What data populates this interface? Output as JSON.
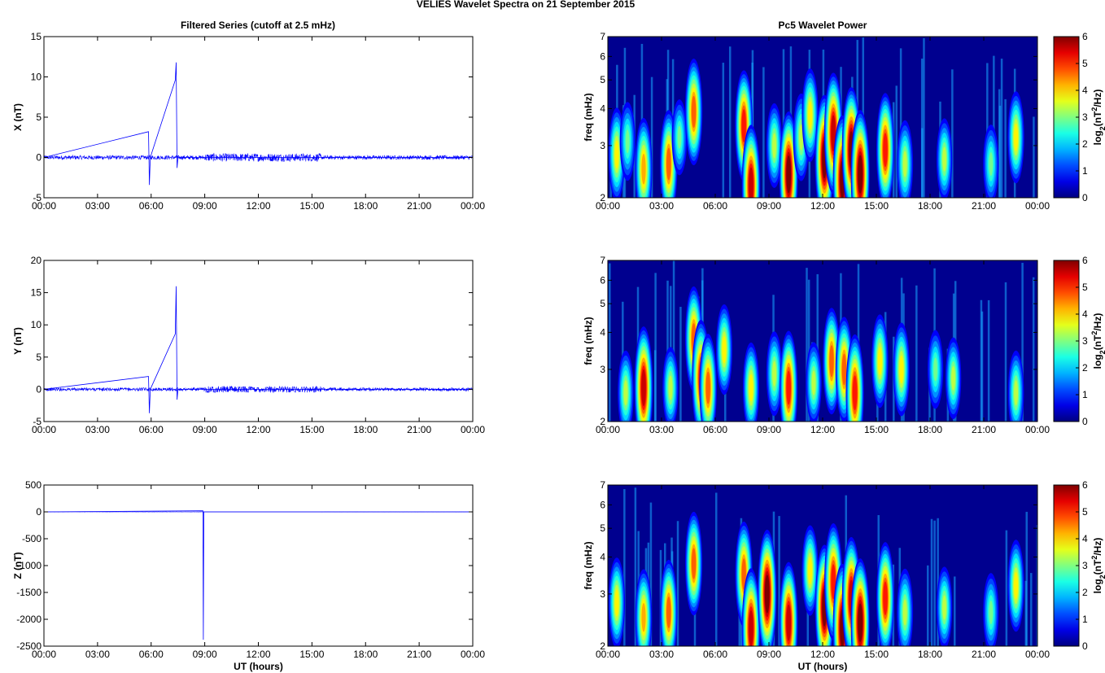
{
  "figure": {
    "title": "VELIES Wavelet Spectra on 21 September 2015",
    "left_column_title": "Filtered Series (cutoff at 2.5 mHz)",
    "right_column_title": "Pc5 Wavelet Power"
  },
  "colors": {
    "trace": "#0000ff",
    "spectrum_background": "#00008f"
  },
  "chart_data": [
    {
      "type": "line",
      "title": "Filtered Series (cutoff at 2.5 mHz)",
      "ylabel": "X (nT)",
      "xlabel": "",
      "xlim": [
        0,
        24
      ],
      "ylim": [
        -5,
        15
      ],
      "yticks": [
        "15",
        "10",
        "5",
        "0",
        "-5"
      ],
      "xticks": [
        "00:00",
        "03:00",
        "06:00",
        "09:00",
        "12:00",
        "15:00",
        "18:00",
        "21:00",
        "00:00"
      ],
      "series": [
        {
          "x": [
            0,
            5.85,
            5.9,
            5.95,
            7.35,
            7.4,
            7.45,
            7.5,
            24
          ],
          "y": [
            0,
            3.2,
            -3.4,
            0,
            9.6,
            11.8,
            -1.3,
            0,
            0
          ]
        }
      ]
    },
    {
      "type": "line",
      "ylabel": "Y (nT)",
      "xlabel": "",
      "xlim": [
        0,
        24
      ],
      "ylim": [
        -5,
        20
      ],
      "yticks": [
        "20",
        "15",
        "10",
        "5",
        "0",
        "-5"
      ],
      "xticks": [
        "00:00",
        "03:00",
        "06:00",
        "09:00",
        "12:00",
        "15:00",
        "18:00",
        "21:00",
        "00:00"
      ],
      "series": [
        {
          "x": [
            0,
            5.85,
            5.9,
            5.95,
            7.35,
            7.4,
            7.45,
            7.5,
            24
          ],
          "y": [
            0,
            2.0,
            -3.7,
            0,
            8.6,
            16.0,
            -1.6,
            0,
            0
          ]
        }
      ]
    },
    {
      "type": "line",
      "ylabel": "Z (nT)",
      "xlabel": "UT (hours)",
      "xlim": [
        0,
        24
      ],
      "ylim": [
        -2500,
        500
      ],
      "yticks": [
        "500",
        "0",
        "-500",
        "-1000",
        "-1500",
        "-2000",
        "-2500"
      ],
      "xticks": [
        "00:00",
        "03:00",
        "06:00",
        "09:00",
        "12:00",
        "15:00",
        "18:00",
        "21:00",
        "00:00"
      ],
      "series": [
        {
          "x": [
            0,
            8.9,
            8.92,
            8.95,
            24
          ],
          "y": [
            0,
            20,
            -2380,
            0,
            0
          ]
        }
      ]
    },
    {
      "type": "heatmap",
      "title": "Pc5 Wavelet Power",
      "ylabel": "freq (mHz)",
      "xlabel": "",
      "xlim": [
        0,
        24
      ],
      "ylim": [
        2,
        7
      ],
      "yticks": [
        "7",
        "6",
        "5",
        "4",
        "3",
        "2"
      ],
      "xticks": [
        "00:00",
        "03:00",
        "06:00",
        "09:00",
        "12:00",
        "15:00",
        "18:00",
        "21:00",
        "00:00"
      ],
      "colorbar": {
        "label_base": "log",
        "label_sub": "2",
        "label_mid": "(nT",
        "label_sup": "2",
        "label_end": "/Hz)",
        "ticks": [
          "6",
          "5",
          "4",
          "3",
          "2",
          "1",
          "0"
        ],
        "range": [
          0,
          6
        ]
      },
      "blobs": [
        [
          0.5,
          2.8,
          3.6
        ],
        [
          1.1,
          3.1,
          2.6
        ],
        [
          2.0,
          2.5,
          4.2
        ],
        [
          3.4,
          2.6,
          4.6
        ],
        [
          4.0,
          3.2,
          2.4
        ],
        [
          4.8,
          3.9,
          4.5
        ],
        [
          7.6,
          3.5,
          4.8
        ],
        [
          8.0,
          2.2,
          5.5
        ],
        [
          9.3,
          3.0,
          3.0
        ],
        [
          10.1,
          2.4,
          5.8
        ],
        [
          10.8,
          3.2,
          3.2
        ],
        [
          11.3,
          3.8,
          3.6
        ],
        [
          12.1,
          2.7,
          6.0
        ],
        [
          12.6,
          3.3,
          5.5
        ],
        [
          13.1,
          2.3,
          6.0
        ],
        [
          13.6,
          2.9,
          5.8
        ],
        [
          14.1,
          2.4,
          6.0
        ],
        [
          15.5,
          2.9,
          5.0
        ],
        [
          16.6,
          2.6,
          3.2
        ],
        [
          18.8,
          2.7,
          2.8
        ],
        [
          21.4,
          2.6,
          2.6
        ],
        [
          22.8,
          3.2,
          3.5
        ]
      ]
    },
    {
      "type": "heatmap",
      "ylabel": "freq (mHz)",
      "xlabel": "",
      "xlim": [
        0,
        24
      ],
      "ylim": [
        2,
        7
      ],
      "yticks": [
        "7",
        "6",
        "5",
        "4",
        "3",
        "2"
      ],
      "xticks": [
        "00:00",
        "03:00",
        "06:00",
        "09:00",
        "12:00",
        "15:00",
        "18:00",
        "21:00",
        "00:00"
      ],
      "colorbar": {
        "label_base": "log",
        "label_sub": "2",
        "label_mid": "(nT",
        "label_sup": "2",
        "label_end": "/Hz)",
        "ticks": [
          "6",
          "5",
          "4",
          "3",
          "2",
          "1",
          "0"
        ],
        "range": [
          0,
          6
        ]
      },
      "blobs": [
        [
          1.0,
          2.5,
          3.0
        ],
        [
          2.0,
          2.6,
          5.6
        ],
        [
          3.5,
          2.6,
          2.8
        ],
        [
          4.8,
          3.8,
          4.4
        ],
        [
          5.2,
          2.8,
          5.2
        ],
        [
          5.6,
          2.6,
          4.6
        ],
        [
          6.5,
          3.5,
          3.4
        ],
        [
          8.0,
          2.6,
          3.4
        ],
        [
          9.3,
          2.9,
          3.0
        ],
        [
          10.1,
          2.6,
          5.0
        ],
        [
          11.5,
          2.7,
          2.8
        ],
        [
          12.5,
          3.2,
          4.5
        ],
        [
          13.2,
          3.0,
          4.4
        ],
        [
          13.8,
          2.5,
          5.2
        ],
        [
          15.2,
          3.2,
          3.6
        ],
        [
          16.4,
          3.0,
          3.6
        ],
        [
          18.3,
          3.0,
          2.6
        ],
        [
          19.3,
          2.8,
          2.8
        ],
        [
          22.8,
          2.5,
          3.0
        ]
      ]
    },
    {
      "type": "heatmap",
      "ylabel": "freq (mHz)",
      "xlabel": "UT (hours)",
      "xlim": [
        0,
        24
      ],
      "ylim": [
        2,
        7
      ],
      "yticks": [
        "7",
        "6",
        "5",
        "4",
        "3",
        "2"
      ],
      "xticks": [
        "00:00",
        "03:00",
        "06:00",
        "09:00",
        "12:00",
        "15:00",
        "18:00",
        "21:00",
        "00:00"
      ],
      "colorbar": {
        "label_base": "log",
        "label_sub": "2",
        "label_mid": "(nT",
        "label_sup": "2",
        "label_end": "/Hz)",
        "ticks": [
          "6",
          "5",
          "4",
          "3",
          "2",
          "1",
          "0"
        ],
        "range": [
          0,
          6
        ]
      },
      "blobs": [
        [
          0.5,
          2.8,
          3.4
        ],
        [
          2.0,
          2.5,
          3.8
        ],
        [
          3.4,
          2.6,
          4.4
        ],
        [
          4.8,
          3.8,
          4.3
        ],
        [
          7.6,
          3.5,
          4.4
        ],
        [
          8.0,
          2.3,
          5.4
        ],
        [
          8.9,
          3.0,
          6.0
        ],
        [
          10.1,
          2.4,
          5.5
        ],
        [
          11.3,
          3.6,
          3.4
        ],
        [
          12.1,
          2.7,
          5.8
        ],
        [
          12.6,
          3.3,
          5.2
        ],
        [
          13.1,
          2.3,
          6.0
        ],
        [
          13.6,
          2.9,
          5.6
        ],
        [
          14.1,
          2.4,
          6.0
        ],
        [
          15.5,
          2.9,
          4.9
        ],
        [
          16.6,
          2.6,
          3.2
        ],
        [
          18.8,
          2.7,
          2.8
        ],
        [
          21.4,
          2.6,
          2.6
        ],
        [
          22.8,
          3.2,
          3.5
        ]
      ]
    }
  ]
}
